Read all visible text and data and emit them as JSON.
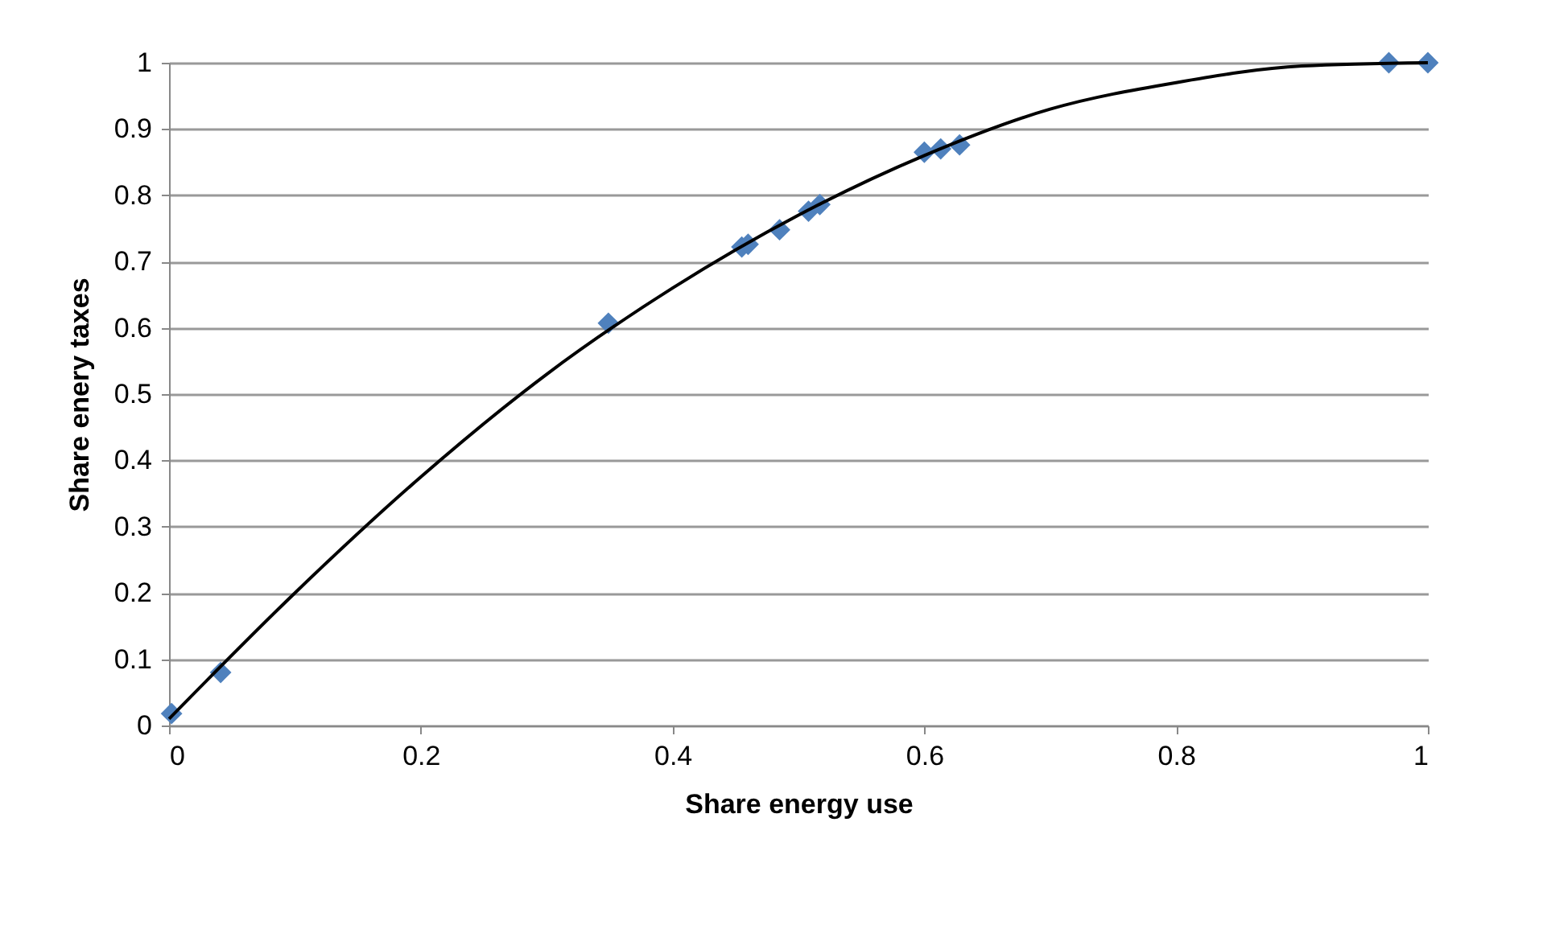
{
  "chart_data": {
    "type": "scatter",
    "xlabel": "Share energy use",
    "ylabel": "Share enery taxes",
    "xlim": [
      0,
      1
    ],
    "xticks": [
      0,
      0.2,
      0.4,
      0.6,
      0.8,
      1
    ],
    "ylim": [
      0,
      1
    ],
    "yticks": [
      0,
      0.1,
      0.2,
      0.3,
      0.4,
      0.5,
      0.6,
      0.7,
      0.8,
      0.9,
      1
    ],
    "grid": "y",
    "marker": "diamond",
    "series": [
      {
        "color": "#4f81bd",
        "x": [
          0.002,
          0.041,
          0.349,
          0.455,
          0.46,
          0.485,
          0.508,
          0.517,
          0.6,
          0.613,
          0.628,
          0.969,
          1.0
        ],
        "values": [
          0.018,
          0.08,
          0.607,
          0.722,
          0.726,
          0.748,
          0.776,
          0.786,
          0.865,
          0.87,
          0.876,
          1.0,
          1.0
        ]
      },
      {
        "type": "line",
        "color": "#000000",
        "marker": "none",
        "x": [
          0,
          0.1,
          0.2,
          0.3,
          0.4,
          0.5,
          0.6,
          0.7,
          0.8,
          0.9,
          1.0
        ],
        "values": [
          0.01,
          0.2,
          0.375,
          0.53,
          0.66,
          0.77,
          0.86,
          0.93,
          0.97,
          0.995,
          1.0
        ]
      }
    ]
  }
}
